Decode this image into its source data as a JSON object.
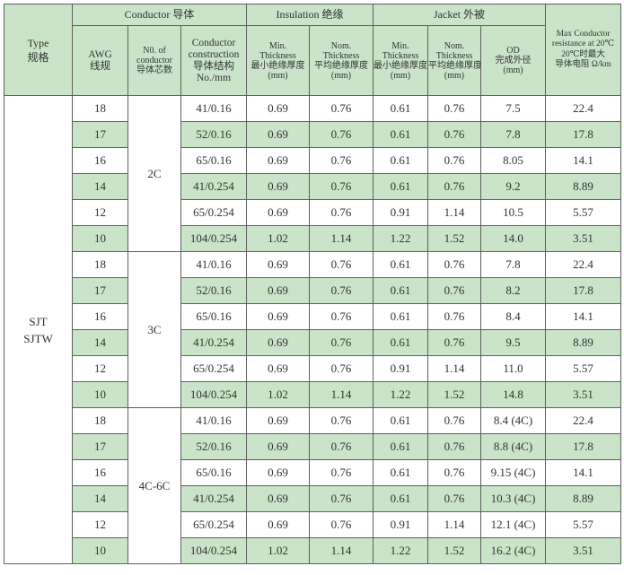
{
  "header": {
    "type": [
      "Type",
      "规格"
    ],
    "conductor": "Conductor 导体",
    "insulation": "Insulation 绝缘",
    "jacket": "Jacket 外被",
    "max_resistance": [
      "Max Conductor",
      "resistance at 20℃",
      "20℃时最大",
      "导体电阻 Ω/km"
    ],
    "awg": [
      "AWG",
      "线规"
    ],
    "no_conductor": [
      "N0. of",
      "conductor",
      "导体芯数"
    ],
    "construction": [
      "Conductor",
      "construction",
      "导体结构",
      "No./mm"
    ],
    "ins_min": [
      "Min.",
      "Thickness",
      "最小绝缘厚度",
      "(mm)"
    ],
    "ins_nom": [
      "Nom.",
      "Thickness",
      "平均绝缘厚度",
      "(mm)"
    ],
    "jac_min": [
      "Min.",
      "Thickness",
      "最小绝缘厚度",
      "(mm)"
    ],
    "jac_nom": [
      "Nom.",
      "Thickness",
      "平均绝缘厚度",
      "(mm)"
    ],
    "od": [
      "OD",
      "完成外径",
      "(mm)"
    ]
  },
  "type_label": [
    "SJT",
    "SJTW"
  ],
  "groups": [
    {
      "cores": "2C",
      "rows": [
        {
          "awg": "18",
          "construction": "41/0.16",
          "ins_min": "0.69",
          "ins_nom": "0.76",
          "jac_min": "0.61",
          "jac_nom": "0.76",
          "od": "7.5",
          "res": "22.4"
        },
        {
          "awg": "17",
          "construction": "52/0.16",
          "ins_min": "0.69",
          "ins_nom": "0.76",
          "jac_min": "0.61",
          "jac_nom": "0.76",
          "od": "7.8",
          "res": "17.8"
        },
        {
          "awg": "16",
          "construction": "65/0.16",
          "ins_min": "0.69",
          "ins_nom": "0.76",
          "jac_min": "0.61",
          "jac_nom": "0.76",
          "od": "8.05",
          "res": "14.1"
        },
        {
          "awg": "14",
          "construction": "41/0.254",
          "ins_min": "0.69",
          "ins_nom": "0.76",
          "jac_min": "0.61",
          "jac_nom": "0.76",
          "od": "9.2",
          "res": "8.89"
        },
        {
          "awg": "12",
          "construction": "65/0.254",
          "ins_min": "0.69",
          "ins_nom": "0.76",
          "jac_min": "0.91",
          "jac_nom": "1.14",
          "od": "10.5",
          "res": "5.57"
        },
        {
          "awg": "10",
          "construction": "104/0.254",
          "ins_min": "1.02",
          "ins_nom": "1.14",
          "jac_min": "1.22",
          "jac_nom": "1.52",
          "od": "14.0",
          "res": "3.51"
        }
      ]
    },
    {
      "cores": "3C",
      "rows": [
        {
          "awg": "18",
          "construction": "41/0.16",
          "ins_min": "0.69",
          "ins_nom": "0.76",
          "jac_min": "0.61",
          "jac_nom": "0.76",
          "od": "7.8",
          "res": "22.4"
        },
        {
          "awg": "17",
          "construction": "52/0.16",
          "ins_min": "0.69",
          "ins_nom": "0.76",
          "jac_min": "0.61",
          "jac_nom": "0.76",
          "od": "8.2",
          "res": "17.8"
        },
        {
          "awg": "16",
          "construction": "65/0.16",
          "ins_min": "0.69",
          "ins_nom": "0.76",
          "jac_min": "0.61",
          "jac_nom": "0.76",
          "od": "8.4",
          "res": "14.1"
        },
        {
          "awg": "14",
          "construction": "41/0.254",
          "ins_min": "0.69",
          "ins_nom": "0.76",
          "jac_min": "0.61",
          "jac_nom": "0.76",
          "od": "9.5",
          "res": "8.89"
        },
        {
          "awg": "12",
          "construction": "65/0.254",
          "ins_min": "0.69",
          "ins_nom": "0.76",
          "jac_min": "0.91",
          "jac_nom": "1.14",
          "od": "11.0",
          "res": "5.57"
        },
        {
          "awg": "10",
          "construction": "104/0.254",
          "ins_min": "1.02",
          "ins_nom": "1.14",
          "jac_min": "1.22",
          "jac_nom": "1.52",
          "od": "14.8",
          "res": "3.51"
        }
      ]
    },
    {
      "cores": "4C-6C",
      "rows": [
        {
          "awg": "18",
          "construction": "41/0.16",
          "ins_min": "0.69",
          "ins_nom": "0.76",
          "jac_min": "0.61",
          "jac_nom": "0.76",
          "od": "8.4 (4C)",
          "res": "22.4"
        },
        {
          "awg": "17",
          "construction": "52/0.16",
          "ins_min": "0.69",
          "ins_nom": "0.76",
          "jac_min": "0.61",
          "jac_nom": "0.76",
          "od": "8.8 (4C)",
          "res": "17.8"
        },
        {
          "awg": "16",
          "construction": "65/0.16",
          "ins_min": "0.69",
          "ins_nom": "0.76",
          "jac_min": "0.61",
          "jac_nom": "0.76",
          "od": "9.15 (4C)",
          "res": "14.1"
        },
        {
          "awg": "14",
          "construction": "41/0.254",
          "ins_min": "0.69",
          "ins_nom": "0.76",
          "jac_min": "0.61",
          "jac_nom": "0.76",
          "od": "10.3 (4C)",
          "res": "8.89"
        },
        {
          "awg": "12",
          "construction": "65/0.254",
          "ins_min": "0.69",
          "ins_nom": "0.76",
          "jac_min": "0.91",
          "jac_nom": "1.14",
          "od": "12.1 (4C)",
          "res": "5.57"
        },
        {
          "awg": "10",
          "construction": "104/0.254",
          "ins_min": "1.02",
          "ins_nom": "1.14",
          "jac_min": "1.22",
          "jac_nom": "1.52",
          "od": "16.2 (4C)",
          "res": "3.51"
        }
      ]
    }
  ]
}
